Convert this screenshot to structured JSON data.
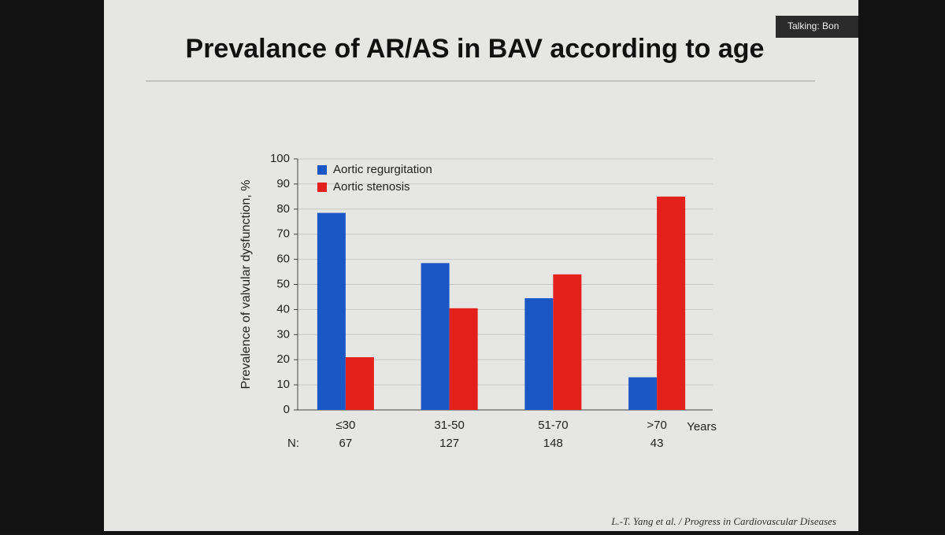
{
  "slide": {
    "title": "Prevalance of AR/AS in BAV according to age",
    "citation": "L.-T. Yang et al. / Progress in Cardiovascular Diseases"
  },
  "overlay": {
    "speaker": "Talking: Bon"
  },
  "chart_data": {
    "type": "bar",
    "y_label": "Prevalence of valvular dysfunction, %",
    "x_label": "Years",
    "categories": [
      "≤30",
      "31-50",
      "51-70",
      ">70"
    ],
    "n_label": "N:",
    "n_values": [
      67,
      127,
      148,
      43
    ],
    "series": [
      {
        "name": "Aortic regurgitation",
        "color": "#1a56c4",
        "values": [
          78.5,
          58.5,
          44.5,
          13
        ]
      },
      {
        "name": "Aortic stenosis",
        "color": "#e3201c",
        "values": [
          21,
          40.5,
          54,
          85
        ]
      }
    ],
    "ylim": [
      0,
      100
    ],
    "yticks": [
      0,
      10,
      20,
      30,
      40,
      50,
      60,
      70,
      80,
      90,
      100
    ],
    "grid": true,
    "legend": "top-left"
  }
}
